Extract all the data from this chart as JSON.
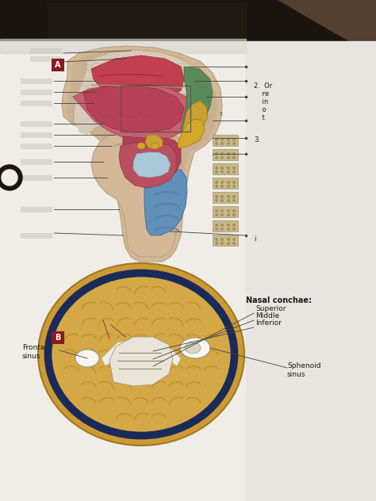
{
  "paper_bg": "#f0ede8",
  "paper_bg2": "#e8e5e0",
  "dark_top": "#1a1510",
  "dark_right_top": "#2a2015",
  "label_box_color": "#8b1a1a",
  "label_text_color": "#ffffff",
  "label_A": "A",
  "label_B": "B",
  "nasal_conchae_label": "Nasal conchae:",
  "superior_label": "Superior",
  "middle_label": "Middle",
  "inferior_label": "Inferior",
  "frontal_sinus_label": "Frontal\nsinus",
  "sphenoid_sinus_label": "Sphenoid\nsinus",
  "text_2": "2.  Or",
  "text_2b": "    re",
  "text_2c": "    in",
  "text_2d": "    o",
  "text_2e": "    t",
  "text_3": "3.",
  "text_i": "i",
  "skin_color": "#d4b896",
  "skull_bone": "#c8b090",
  "nasal_red": "#c04050",
  "tongue_red": "#b84055",
  "oral_pink": "#c86070",
  "green_pharynx": "#5a8a5a",
  "yellow_larynx": "#c8a030",
  "blue_trachea": "#6090b8",
  "spine_bone": "#c8b888",
  "brain_outer": "#cc9a35",
  "brain_inner": "#d4a845",
  "navy_ring": "#1a2a5a",
  "brain_folds": "#b88828",
  "white_sinus": "#f8f5f0",
  "line_color": "#404040",
  "blur_color": "#c8c4be",
  "hole_color": "#1a1510"
}
